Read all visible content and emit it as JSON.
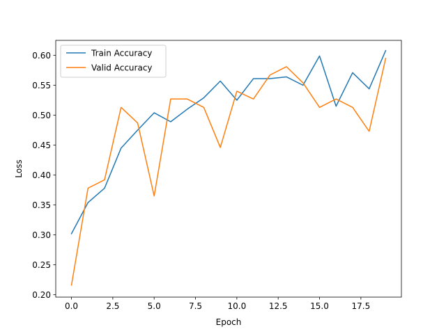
{
  "chart_data": {
    "type": "line",
    "title": "",
    "xlabel": "Epoch",
    "ylabel": "Loss",
    "xlim": [
      -0.95,
      19.95
    ],
    "ylim": [
      0.196,
      0.625
    ],
    "x_ticks": [
      0.0,
      2.5,
      5.0,
      7.5,
      10.0,
      12.5,
      15.0,
      17.5
    ],
    "x_tick_labels": [
      "0.0",
      "2.5",
      "5.0",
      "7.5",
      "10.0",
      "12.5",
      "15.0",
      "17.5"
    ],
    "y_ticks": [
      0.2,
      0.25,
      0.3,
      0.35,
      0.4,
      0.45,
      0.5,
      0.55,
      0.6
    ],
    "y_tick_labels": [
      "0.20",
      "0.25",
      "0.30",
      "0.35",
      "0.40",
      "0.45",
      "0.50",
      "0.55",
      "0.60"
    ],
    "grid": false,
    "legend_position": "upper-left",
    "x": [
      0,
      1,
      2,
      3,
      4,
      5,
      6,
      7,
      8,
      9,
      10,
      11,
      12,
      13,
      14,
      15,
      16,
      17,
      18,
      19
    ],
    "series": [
      {
        "name": "Train Accuracy",
        "color": "#1f77b4",
        "values": [
          0.302,
          0.354,
          0.378,
          0.445,
          0.475,
          0.504,
          0.489,
          0.51,
          0.529,
          0.557,
          0.525,
          0.561,
          0.561,
          0.564,
          0.55,
          0.599,
          0.515,
          0.571,
          0.544,
          0.608
        ]
      },
      {
        "name": "Valid Accuracy",
        "color": "#ff7f0e",
        "values": [
          0.216,
          0.378,
          0.392,
          0.513,
          0.487,
          0.365,
          0.527,
          0.527,
          0.513,
          0.446,
          0.54,
          0.527,
          0.567,
          0.581,
          0.554,
          0.513,
          0.527,
          0.513,
          0.473,
          0.595
        ]
      }
    ]
  }
}
